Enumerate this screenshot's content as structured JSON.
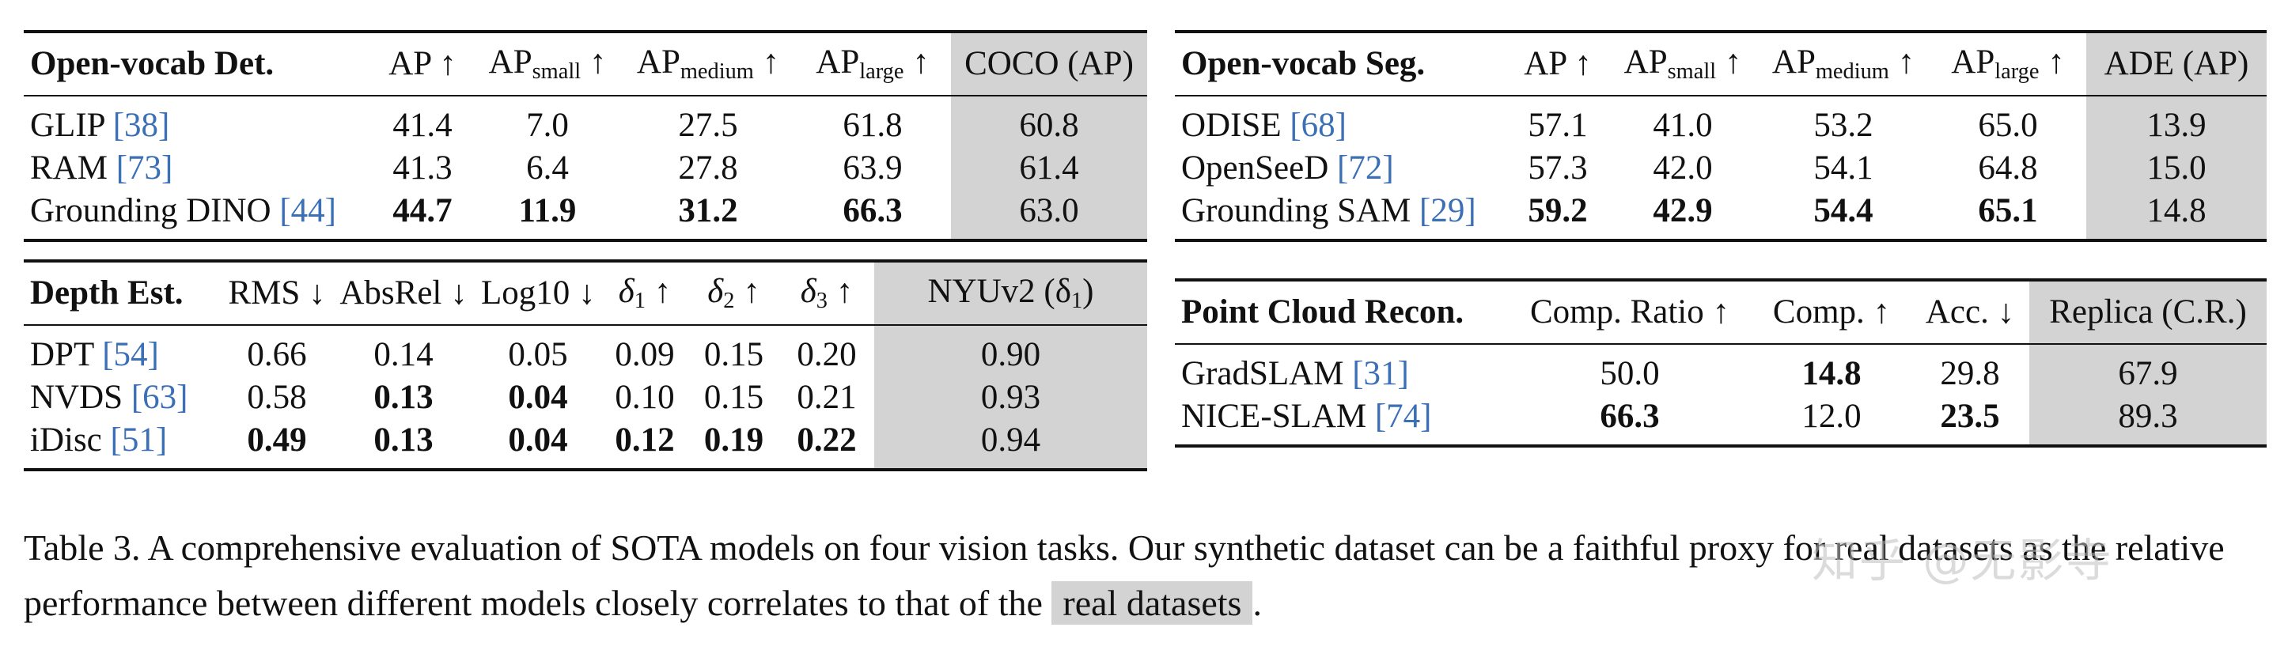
{
  "tables": {
    "det": {
      "headers": [
        "Open-vocab Det.",
        "AP ↑",
        "AP",
        "small",
        " ↑",
        "AP",
        "medium",
        " ↑",
        "AP",
        "large",
        " ↑",
        "COCO (AP)"
      ],
      "rows": [
        {
          "name": "GLIP ",
          "cite": "[38]",
          "vals": [
            "41.4",
            "7.0",
            "27.5",
            "61.8",
            "60.8"
          ]
        },
        {
          "name": "RAM ",
          "cite": "[73]",
          "vals": [
            "41.3",
            "6.4",
            "27.8",
            "63.9",
            "61.4"
          ]
        },
        {
          "name": "Grounding DINO ",
          "cite": "[44]",
          "vals": [
            "44.7",
            "11.9",
            "31.2",
            "66.3",
            "63.0"
          ]
        }
      ]
    },
    "depth": {
      "headers": [
        "Depth Est.",
        "RMS ↓",
        "AbsRel ↓",
        "Log10 ↓",
        "δ",
        "1",
        " ↑",
        "δ",
        "2",
        " ↑",
        "δ",
        "3",
        " ↑",
        "NYUv2 (δ",
        "1",
        ")"
      ],
      "rows": [
        {
          "name": "DPT ",
          "cite": "[54]",
          "vals": [
            "0.66",
            "0.14",
            "0.05",
            "0.09",
            "0.15",
            "0.20",
            "0.90"
          ]
        },
        {
          "name": "NVDS ",
          "cite": "[63]",
          "vals": [
            "0.58",
            "0.13",
            "0.04",
            "0.10",
            "0.15",
            "0.21",
            "0.93"
          ]
        },
        {
          "name": "iDisc ",
          "cite": "[51]",
          "vals": [
            "0.49",
            "0.13",
            "0.04",
            "0.12",
            "0.19",
            "0.22",
            "0.94"
          ]
        }
      ]
    },
    "seg": {
      "headers": [
        "Open-vocab Seg.",
        "AP ↑",
        "AP",
        "small",
        " ↑",
        "AP",
        "medium",
        " ↑",
        "AP",
        "large",
        " ↑",
        "ADE (AP)"
      ],
      "rows": [
        {
          "name": "ODISE ",
          "cite": "[68]",
          "vals": [
            "57.1",
            "41.0",
            "53.2",
            "65.0",
            "13.9"
          ]
        },
        {
          "name": "OpenSeeD ",
          "cite": "[72]",
          "vals": [
            "57.3",
            "42.0",
            "54.1",
            "64.8",
            "15.0"
          ]
        },
        {
          "name": "Grounding SAM ",
          "cite": "[29]",
          "vals": [
            "59.2",
            "42.9",
            "54.4",
            "65.1",
            "14.8"
          ]
        }
      ]
    },
    "pc": {
      "headers": [
        "Point Cloud Recon.",
        "Comp. Ratio ↑",
        "Comp. ↑",
        "Acc. ↓",
        "Replica (C.R.)"
      ],
      "rows": [
        {
          "name": "GradSLAM ",
          "cite": "[31]",
          "vals": [
            "50.0",
            "14.8",
            "29.8",
            "67.9"
          ]
        },
        {
          "name": "NICE-SLAM ",
          "cite": "[74]",
          "vals": [
            "66.3",
            "12.0",
            "23.5",
            "89.3"
          ]
        }
      ]
    }
  },
  "caption": {
    "part1": "Table 3. A comprehensive evaluation of SOTA models on four vision tasks. Our synthetic dataset can be a faithful proxy for real datasets as the relative performance between different models closely correlates to that of the ",
    "highlight": "real datasets",
    "part2": "."
  },
  "watermark": "知乎 @无影寺"
}
